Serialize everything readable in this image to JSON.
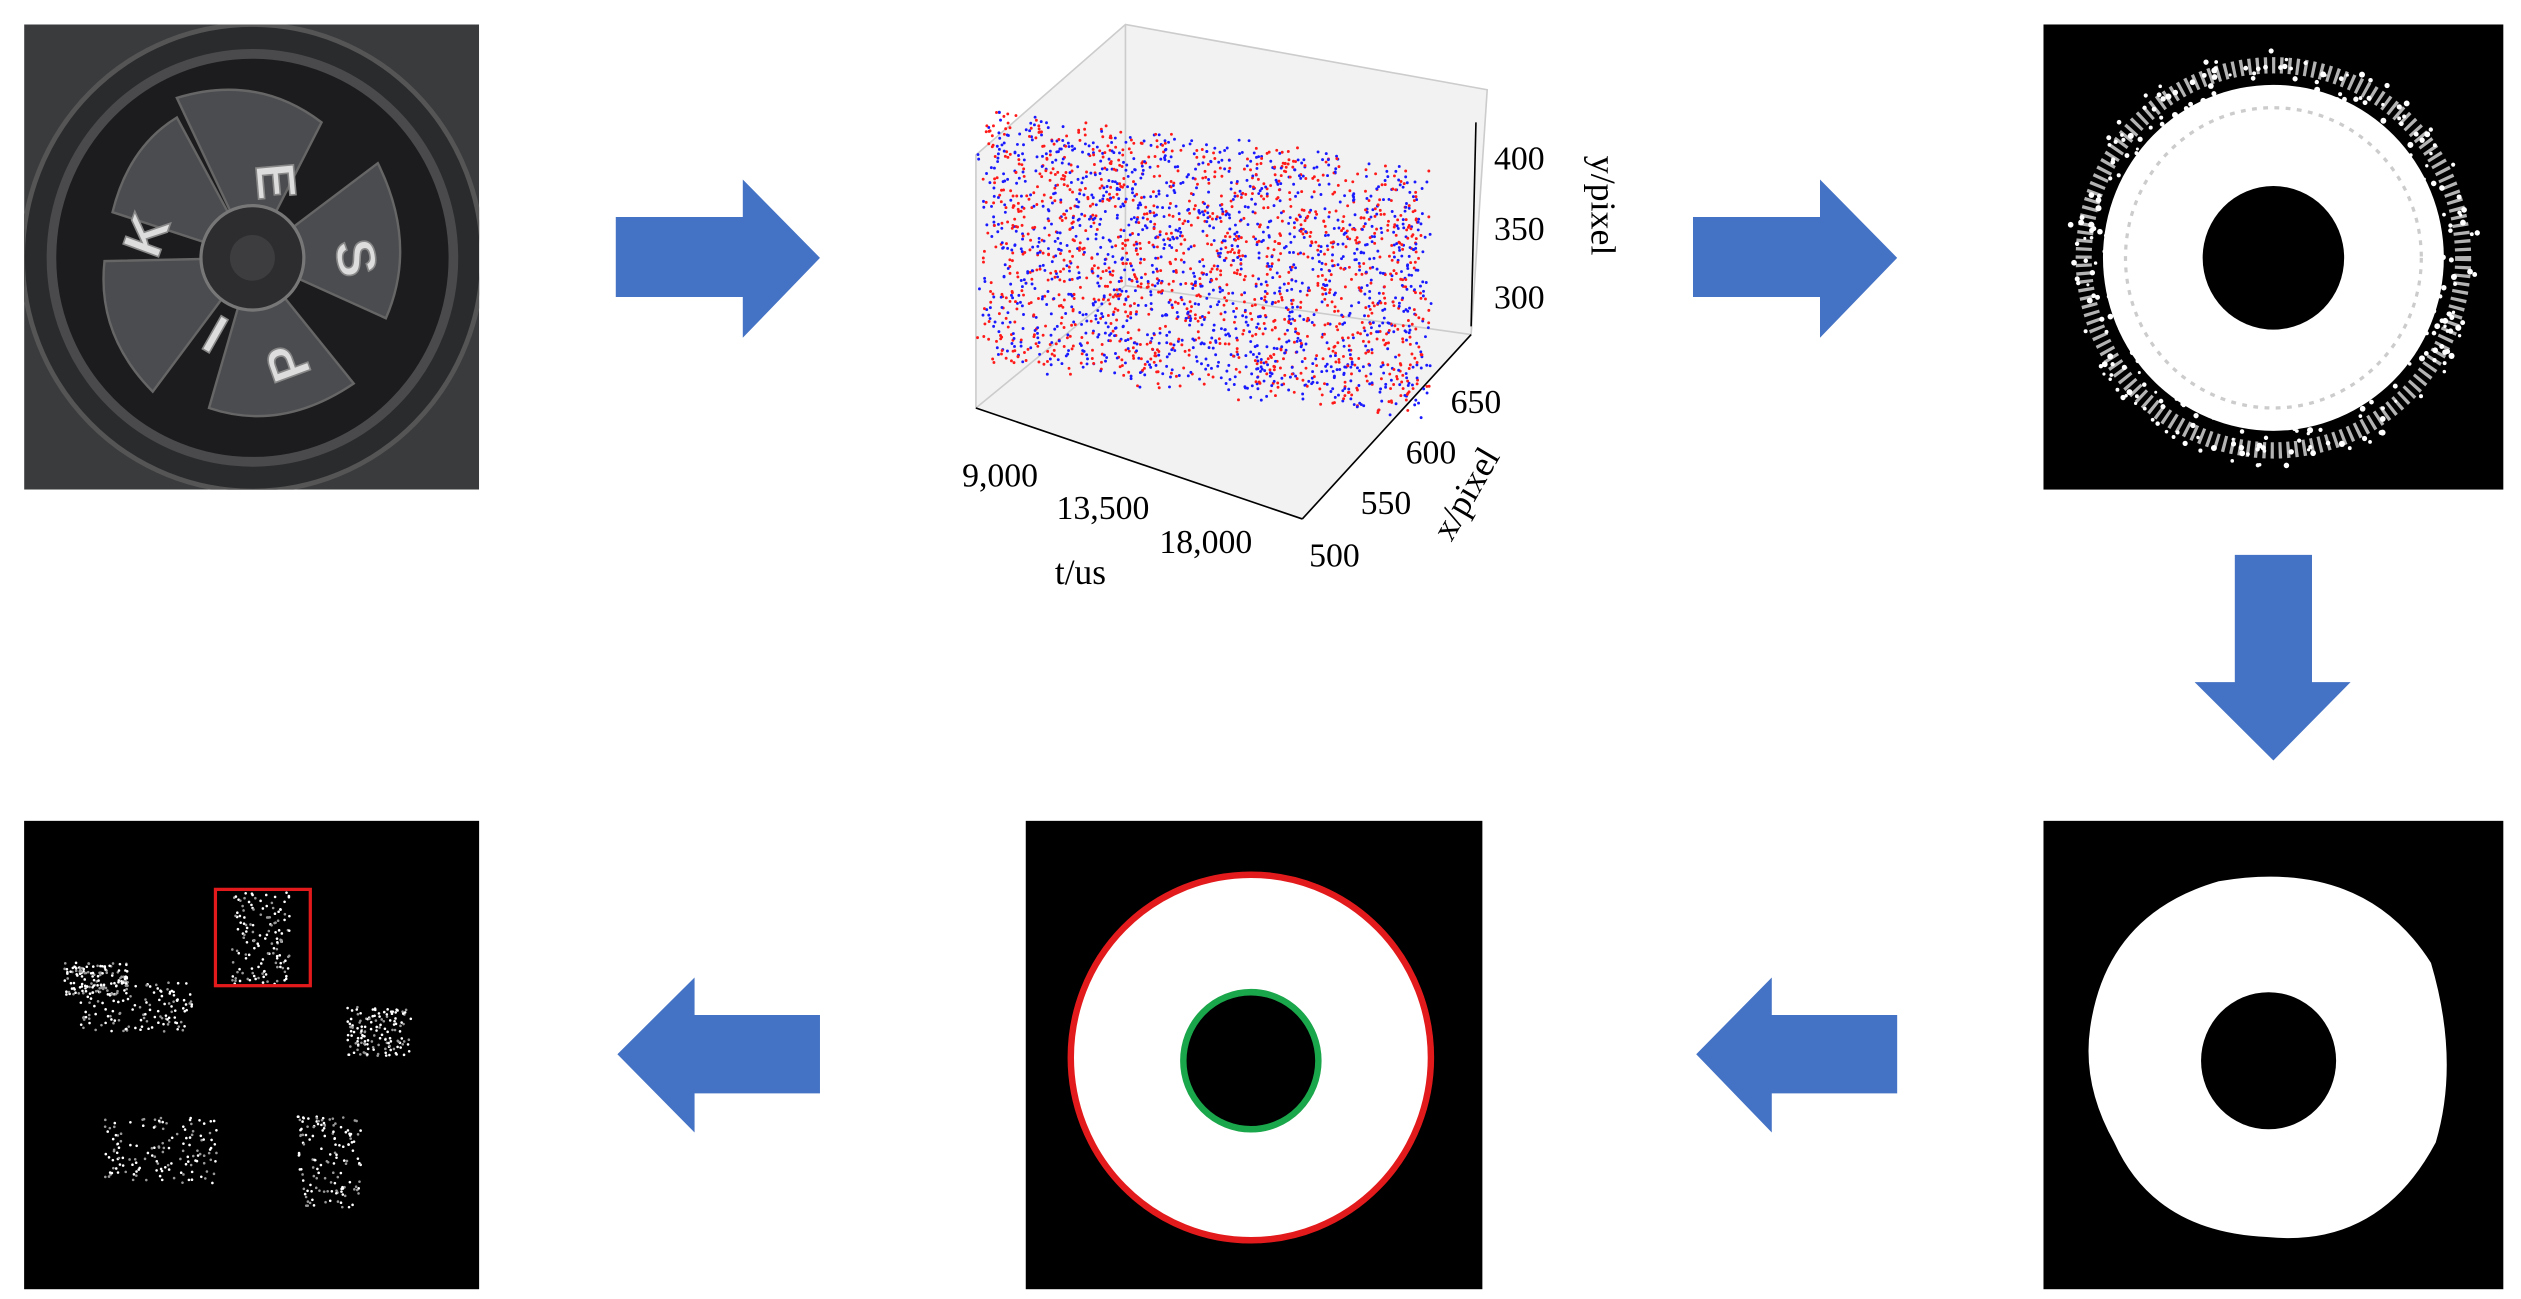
{
  "fan": {
    "letters": [
      "K",
      "E",
      "S",
      "P",
      "I"
    ]
  },
  "plot": {
    "x_axis": {
      "label": "t/us",
      "ticks": [
        "9,000",
        "13,500",
        "18,000"
      ]
    },
    "y_axis": {
      "label": "x/pixel",
      "ticks": [
        "500",
        "550",
        "600",
        "650"
      ]
    },
    "z_axis": {
      "label": "y/pixel",
      "ticks": [
        "400",
        "350",
        "300"
      ]
    }
  }
}
